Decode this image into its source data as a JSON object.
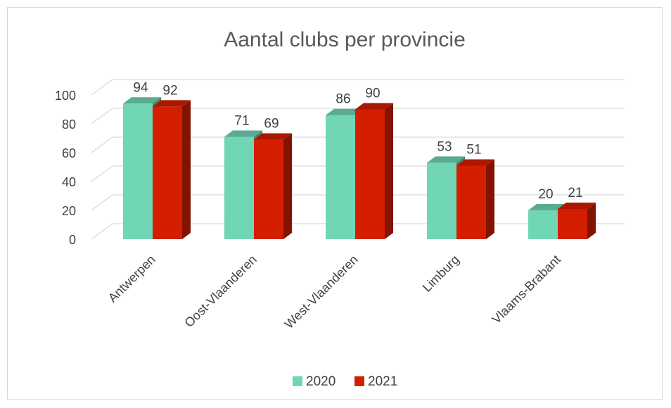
{
  "chart_data": {
    "type": "bar",
    "title": "Aantal clubs per provincie",
    "categories": [
      "Antwerpen",
      "Oost-Vlaanderen",
      "West-Vlaanderen",
      "Limburg",
      "Vlaams-Brabant"
    ],
    "series": [
      {
        "name": "2020",
        "values": [
          94,
          71,
          86,
          53,
          20
        ],
        "color": "#70d6b6"
      },
      {
        "name": "2021",
        "values": [
          92,
          69,
          90,
          51,
          21
        ],
        "color": "#d41e00"
      }
    ],
    "ylim": [
      0,
      100
    ],
    "yticks": [
      "0",
      "20",
      "40",
      "60",
      "80",
      "100"
    ],
    "xlabel": "",
    "ylabel": "",
    "grid": true,
    "legend_position": "bottom",
    "style": "3d-clustered-column"
  }
}
